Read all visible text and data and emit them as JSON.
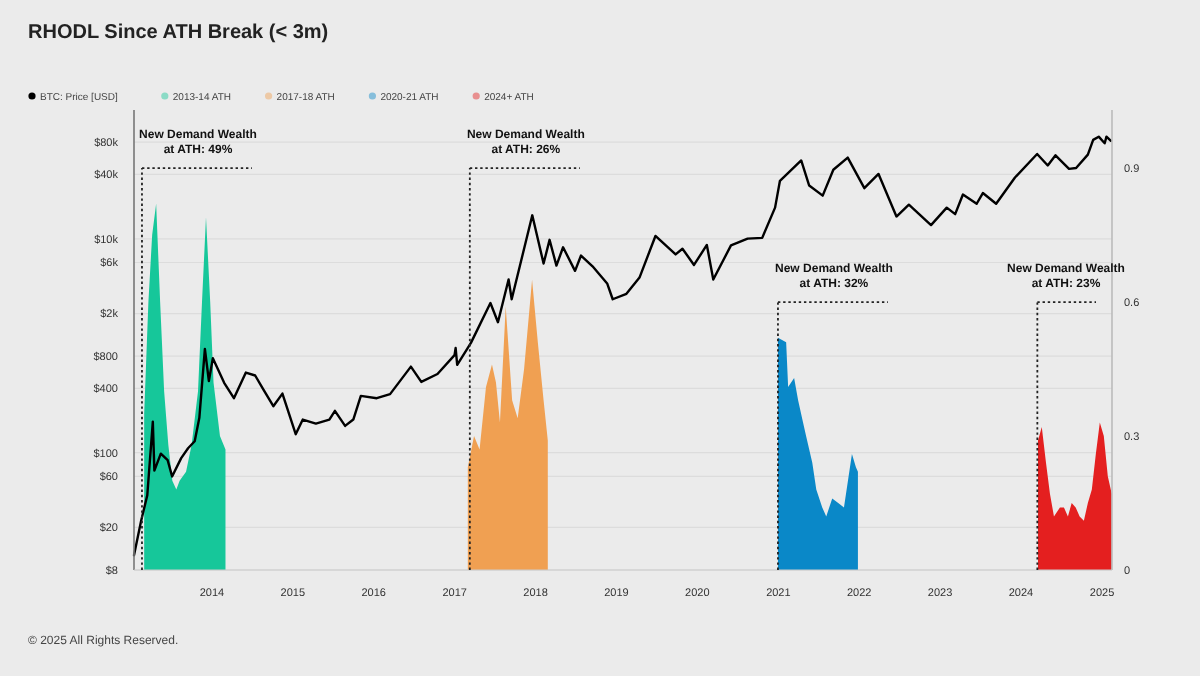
{
  "chart_data": {
    "type": "line",
    "title": "RHODL Since ATH Break (< 3m)",
    "xlim": [
      "2013-01-14",
      "2025-02-15"
    ],
    "xticks": [
      "2014",
      "2015",
      "2016",
      "2017",
      "2018",
      "2019",
      "2020",
      "2021",
      "2022",
      "2023",
      "2024",
      "2025"
    ],
    "ylim": [
      8,
      160000
    ],
    "yticks": [
      {
        "value": 8,
        "label": "$8"
      },
      {
        "value": 20,
        "label": "$20"
      },
      {
        "value": 60,
        "label": "$60"
      },
      {
        "value": 100,
        "label": "$100"
      },
      {
        "value": 400,
        "label": "$400"
      },
      {
        "value": 800,
        "label": "$800"
      },
      {
        "value": 2000,
        "label": "$2k"
      },
      {
        "value": 6000,
        "label": "$6k"
      },
      {
        "value": 10000,
        "label": "$10k"
      },
      {
        "value": 40000,
        "label": "$40k"
      },
      {
        "value": 80000,
        "label": "$80k"
      }
    ],
    "log": "y",
    "y2lim": [
      0,
      1.03
    ],
    "y2ticks": [
      0,
      0.3,
      0.6,
      0.9
    ],
    "grid": "y",
    "legend": "top left",
    "series": [
      {
        "name": "BTC: Price [USD]",
        "color": "#000000",
        "x": [
          "2013-01-14",
          "2013-02-15",
          "2013-03-15",
          "2013-04-09",
          "2013-04-16",
          "2013-05-15",
          "2013-06-15",
          "2013-07-05",
          "2013-08-15",
          "2013-09-15",
          "2013-10-15",
          "2013-11-05",
          "2013-11-30",
          "2013-12-18",
          "2014-01-05",
          "2014-02-25",
          "2014-04-10",
          "2014-06-03",
          "2014-07-15",
          "2014-08-18",
          "2014-10-05",
          "2014-11-15",
          "2015-01-14",
          "2015-02-15",
          "2015-04-15",
          "2015-06-15",
          "2015-07-10",
          "2015-08-25",
          "2015-10-01",
          "2015-11-04",
          "2016-01-15",
          "2016-03-15",
          "2016-06-17",
          "2016-08-03",
          "2016-10-15",
          "2016-12-31",
          "2017-01-05",
          "2017-01-12",
          "2017-03-15",
          "2017-06-11",
          "2017-07-15",
          "2017-09-01",
          "2017-09-15",
          "2017-12-17",
          "2018-02-06",
          "2018-03-05",
          "2018-04-05",
          "2018-05-05",
          "2018-06-28",
          "2018-07-25",
          "2018-09-15",
          "2018-11-20",
          "2018-12-15",
          "2019-02-15",
          "2019-04-15",
          "2019-06-26",
          "2019-09-25",
          "2019-10-26",
          "2019-12-17",
          "2020-02-13",
          "2020-03-13",
          "2020-06-01",
          "2020-08-15",
          "2020-10-20",
          "2020-12-17",
          "2021-01-08",
          "2021-04-14",
          "2021-05-20",
          "2021-07-20",
          "2021-09-06",
          "2021-11-10",
          "2022-01-24",
          "2022-03-29",
          "2022-06-18",
          "2022-08-13",
          "2022-11-21",
          "2023-01-31",
          "2023-03-10",
          "2023-04-14",
          "2023-06-15",
          "2023-07-13",
          "2023-09-11",
          "2023-12-05",
          "2024-03-14",
          "2024-05-01",
          "2024-06-05",
          "2024-08-05",
          "2024-09-06",
          "2024-10-29",
          "2024-11-22",
          "2024-12-17",
          "2025-01-13",
          "2025-01-21",
          "2025-02-10"
        ],
        "values": [
          11,
          23,
          40,
          195,
          68,
          98,
          85,
          60,
          89,
          110,
          128,
          212,
          935,
          468,
          765,
          450,
          323,
          561,
          527,
          400,
          272,
          357,
          149,
          204,
          187,
          204,
          246,
          178,
          204,
          340,
          323,
          353,
          638,
          459,
          544,
          816,
          952,
          663,
          1063,
          2508,
          1658,
          4165,
          2720,
          16575,
          5865,
          9775,
          5610,
          8330,
          5015,
          6970,
          5525,
          3825,
          2720,
          3060,
          4335,
          10625,
          7140,
          8075,
          5695,
          8755,
          4165,
          8670,
          10030,
          10200,
          19550,
          34850,
          53975,
          31450,
          25330,
          44200,
          57375,
          29750,
          40375,
          16150,
          20825,
          13430,
          19550,
          17000,
          25925,
          21250,
          26775,
          21250,
          37400,
          62050,
          48450,
          60350,
          45050,
          45900,
          61200,
          84150,
          90100,
          78200,
          90100,
          82450
        ]
      },
      {
        "name": "2013-14 ATH",
        "type": "area",
        "axis": "y2",
        "color": "#16c79a",
        "x": [
          "2013-03-01",
          "2013-03-20",
          "2013-04-06",
          "2013-04-24",
          "2013-05-12",
          "2013-05-30",
          "2013-06-18",
          "2013-07-06",
          "2013-07-24",
          "2013-08-08",
          "2013-09-06",
          "2013-10-01",
          "2013-10-30",
          "2013-11-17",
          "2013-12-05",
          "2013-12-24",
          "2014-01-08",
          "2014-02-06",
          "2014-03-03"
        ],
        "values": [
          0.35,
          0.6,
          0.75,
          0.82,
          0.6,
          0.4,
          0.28,
          0.2,
          0.18,
          0.2,
          0.22,
          0.28,
          0.4,
          0.6,
          0.79,
          0.6,
          0.42,
          0.3,
          0.27
        ]
      },
      {
        "name": "2017-18 ATH",
        "type": "area",
        "axis": "y2",
        "color": "#f0a052",
        "x": [
          "2017-03-01",
          "2017-03-29",
          "2017-04-23",
          "2017-05-22",
          "2017-06-18",
          "2017-07-06",
          "2017-07-24",
          "2017-08-19",
          "2017-09-17",
          "2017-10-12",
          "2017-11-10",
          "2017-12-16",
          "2018-01-11",
          "2018-02-06",
          "2018-02-25"
        ],
        "values": [
          0.23,
          0.3,
          0.27,
          0.41,
          0.46,
          0.42,
          0.33,
          0.59,
          0.38,
          0.34,
          0.45,
          0.65,
          0.51,
          0.38,
          0.29
        ]
      },
      {
        "name": "2020-21 ATH",
        "type": "area",
        "axis": "y2",
        "color": "#0a88c8",
        "x": [
          "2020-12-30",
          "2021-02-05",
          "2021-02-14",
          "2021-03-13",
          "2021-03-31",
          "2021-04-18",
          "2021-05-06",
          "2021-06-03",
          "2021-06-21",
          "2021-07-18",
          "2021-08-05",
          "2021-09-01",
          "2021-09-28",
          "2021-10-24",
          "2021-11-11",
          "2021-11-29",
          "2021-12-17",
          "2021-12-26"
        ],
        "values": [
          0.52,
          0.51,
          0.41,
          0.43,
          0.38,
          0.34,
          0.3,
          0.24,
          0.18,
          0.14,
          0.12,
          0.16,
          0.15,
          0.14,
          0.2,
          0.26,
          0.23,
          0.22
        ]
      },
      {
        "name": "2024+ ATH",
        "type": "area",
        "axis": "y2",
        "color": "#e41f1f",
        "x": [
          "2024-03-18",
          "2024-04-04",
          "2024-04-23",
          "2024-05-11",
          "2024-05-29",
          "2024-06-25",
          "2024-07-13",
          "2024-07-31",
          "2024-08-17",
          "2024-09-04",
          "2024-09-22",
          "2024-10-11",
          "2024-10-29",
          "2024-11-16",
          "2024-12-04",
          "2024-12-22",
          "2025-01-09",
          "2025-01-27",
          "2025-02-14"
        ],
        "values": [
          0.29,
          0.32,
          0.24,
          0.17,
          0.12,
          0.14,
          0.14,
          0.12,
          0.15,
          0.14,
          0.12,
          0.11,
          0.15,
          0.18,
          0.26,
          0.33,
          0.3,
          0.21,
          0.17
        ]
      }
    ],
    "ref_lines": [
      {
        "axis": "x",
        "value": "2013-02-19",
        "label": "New Demand Wealth\nat ATH: 49%",
        "line_style": "dotted",
        "color": "#222222"
      },
      {
        "axis": "x",
        "value": "2017-03-10",
        "label": "New Demand Wealth\nat ATH: 26%",
        "line_style": "dotted",
        "color": "#222222"
      },
      {
        "axis": "x",
        "value": "2020-12-30",
        "label": "New Demand Wealth\nat ATH: 32%",
        "line_style": "dotted",
        "color": "#222222"
      },
      {
        "axis": "x",
        "value": "2024-03-15",
        "label": "New Demand Wealth\nat ATH: 23%",
        "line_style": "dotted",
        "color": "#222222"
      }
    ],
    "annotations": [
      "© 2025 All Rights Reserved."
    ]
  }
}
